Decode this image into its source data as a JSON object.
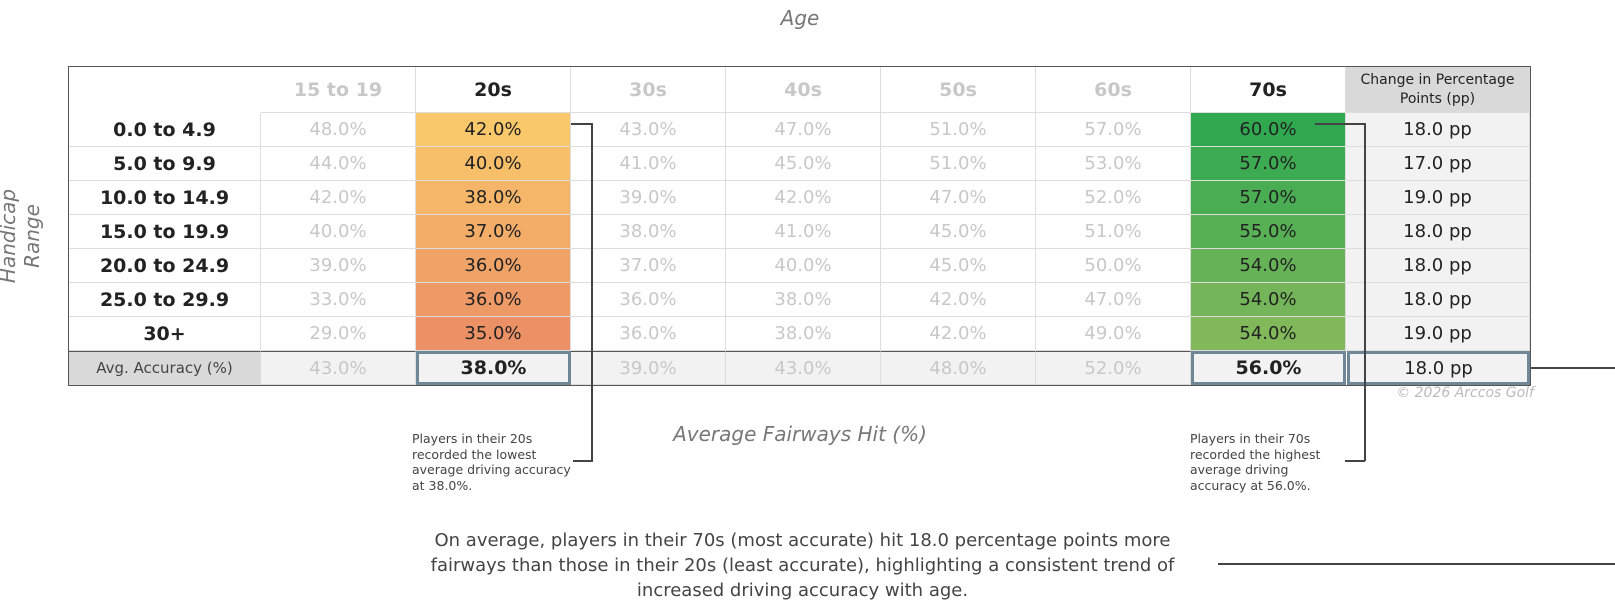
{
  "top_label": "Age",
  "side_label": "Handicap Range",
  "table": {
    "columns": [
      "15 to 19",
      "20s",
      "30s",
      "40s",
      "50s",
      "60s",
      "70s"
    ],
    "change_header": "Change in Percentage Points (pp)",
    "rows": [
      {
        "label": "0.0 to 4.9",
        "cells": [
          "48.0%",
          "42.0%",
          "43.0%",
          "47.0%",
          "51.0%",
          "57.0%",
          "60.0%"
        ],
        "change": "18.0 pp"
      },
      {
        "label": "5.0 to 9.9",
        "cells": [
          "44.0%",
          "40.0%",
          "41.0%",
          "45.0%",
          "51.0%",
          "53.0%",
          "57.0%"
        ],
        "change": "17.0 pp"
      },
      {
        "label": "10.0 to 14.9",
        "cells": [
          "42.0%",
          "38.0%",
          "39.0%",
          "42.0%",
          "47.0%",
          "52.0%",
          "57.0%"
        ],
        "change": "19.0 pp"
      },
      {
        "label": "15.0 to 19.9",
        "cells": [
          "40.0%",
          "37.0%",
          "38.0%",
          "41.0%",
          "45.0%",
          "51.0%",
          "55.0%"
        ],
        "change": "18.0 pp"
      },
      {
        "label": "20.0 to 24.9",
        "cells": [
          "39.0%",
          "36.0%",
          "37.0%",
          "40.0%",
          "45.0%",
          "50.0%",
          "54.0%"
        ],
        "change": "18.0 pp"
      },
      {
        "label": "25.0 to 29.9",
        "cells": [
          "33.0%",
          "36.0%",
          "36.0%",
          "38.0%",
          "42.0%",
          "47.0%",
          "54.0%"
        ],
        "change": "18.0 pp"
      },
      {
        "label": "30+",
        "cells": [
          "29.0%",
          "35.0%",
          "36.0%",
          "38.0%",
          "42.0%",
          "49.0%",
          "54.0%"
        ],
        "change": "19.0 pp"
      }
    ],
    "footer": {
      "label": "Avg. Accuracy (%)",
      "cells": [
        "43.0%",
        "38.0%",
        "39.0%",
        "43.0%",
        "48.0%",
        "52.0%",
        "56.0%"
      ],
      "change": "18.0 pp"
    }
  },
  "copyright": "© 2026 Arccos Golf",
  "x_label": "Average Fairways Hit (%)",
  "annotations": [
    "Players in their 20s recorded the lowest average driving accuracy at 38.0%.",
    "Players in their 70s recorded the highest average driving accuracy at 56.0%."
  ],
  "summary": "On average, players in their 70s (most accurate) hit 18.0 percentage points more fairways than those in their 20s (least accurate), highlighting a consistent trend of increased driving accuracy with age."
}
